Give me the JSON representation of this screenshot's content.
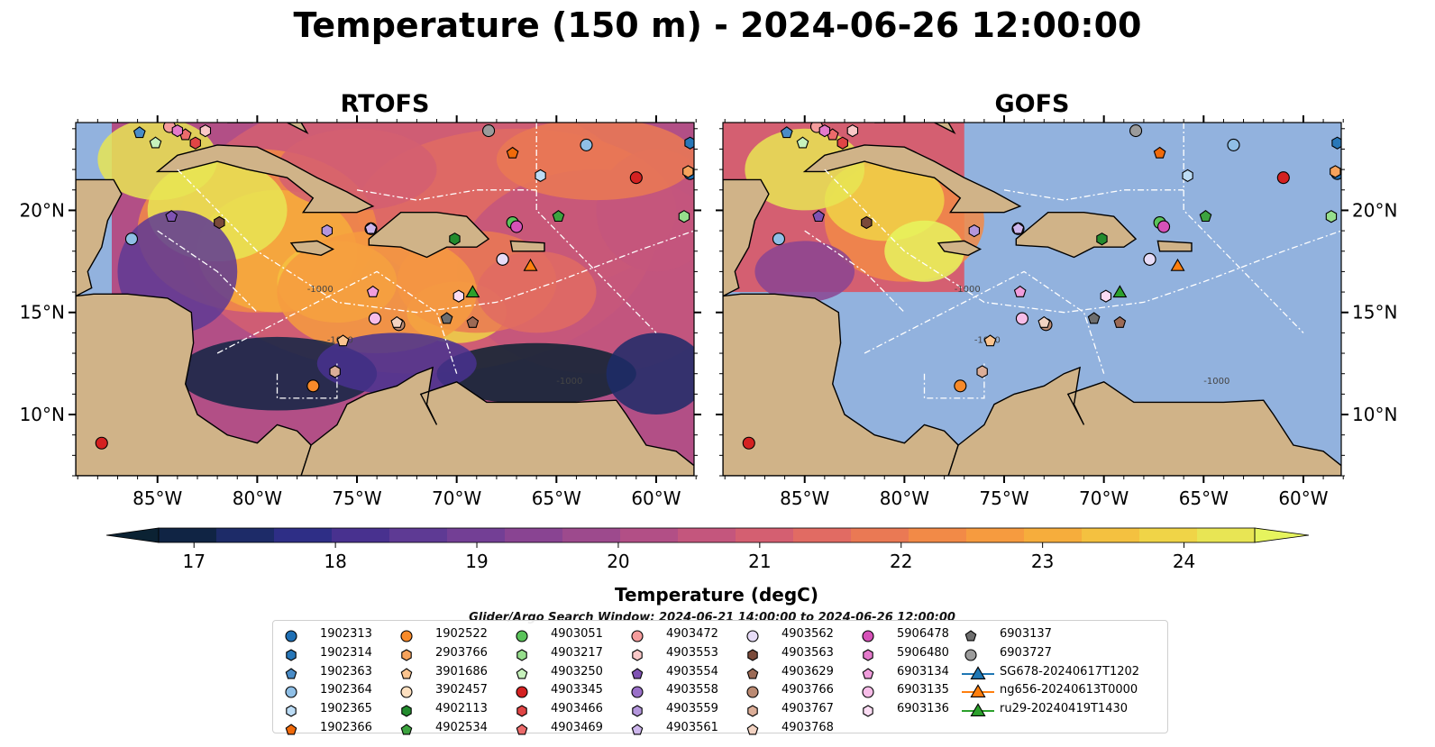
{
  "title": "Temperature (150 m) - 2024-06-26 12:00:00",
  "panels": [
    {
      "title": "RTOFS"
    },
    {
      "title": "GOFS"
    }
  ],
  "axes": {
    "lon_ticks": [
      "85°W",
      "80°W",
      "75°W",
      "70°W",
      "65°W",
      "60°W"
    ],
    "lat_ticks": [
      "20°N",
      "15°N",
      "10°N"
    ]
  },
  "contour_labels": [
    "-1000",
    "-1000",
    "-1000"
  ],
  "colorbar": {
    "label": "Temperature (degC)",
    "ticks": [
      "17",
      "18",
      "19",
      "20",
      "21",
      "22",
      "23",
      "24"
    ],
    "colors": [
      "#0b2233",
      "#102444",
      "#1d2b68",
      "#2e2e86",
      "#48318f",
      "#5e3a94",
      "#733f95",
      "#894492",
      "#9d4a8d",
      "#b24f86",
      "#c4567d",
      "#d45f71",
      "#e16b63",
      "#ea7954",
      "#f28a47",
      "#f69b3f",
      "#f6ad3c",
      "#f4c140",
      "#f0d447",
      "#e8e554",
      "#e6f45e"
    ]
  },
  "search_window": "Glider/Argo Search Window: 2024-06-21 14:00:00 to 2024-06-26 12:00:00",
  "legend": [
    {
      "label": "1902313",
      "marker": "circle",
      "color": "#1f6fb4"
    },
    {
      "label": "1902314",
      "marker": "hexagon",
      "color": "#2877b8"
    },
    {
      "label": "1902363",
      "marker": "pentagon",
      "color": "#4a8cc7"
    },
    {
      "label": "1902364",
      "marker": "circle",
      "color": "#8fbfe6"
    },
    {
      "label": "1902365",
      "marker": "hexagon",
      "color": "#bcdcf5"
    },
    {
      "label": "1902366",
      "marker": "pentagon",
      "color": "#f06a0a"
    },
    {
      "label": "1902522",
      "marker": "circle",
      "color": "#f78a2a"
    },
    {
      "label": "2903766",
      "marker": "hexagon",
      "color": "#f7a35c"
    },
    {
      "label": "3901686",
      "marker": "pentagon",
      "color": "#fbc48f"
    },
    {
      "label": "3902457",
      "marker": "circle",
      "color": "#fde0c0"
    },
    {
      "label": "4902113",
      "marker": "hexagon",
      "color": "#238b2e"
    },
    {
      "label": "4902534",
      "marker": "pentagon",
      "color": "#3ca33f"
    },
    {
      "label": "4903051",
      "marker": "circle",
      "color": "#5ac35a"
    },
    {
      "label": "4903217",
      "marker": "hexagon",
      "color": "#96de8c"
    },
    {
      "label": "4903250",
      "marker": "pentagon",
      "color": "#c7f2bc"
    },
    {
      "label": "4903345",
      "marker": "circle",
      "color": "#d42121"
    },
    {
      "label": "4903466",
      "marker": "hexagon",
      "color": "#e04545"
    },
    {
      "label": "4903469",
      "marker": "pentagon",
      "color": "#ec6b6b"
    },
    {
      "label": "4903472",
      "marker": "circle",
      "color": "#f59c9c"
    },
    {
      "label": "4903553",
      "marker": "hexagon",
      "color": "#fac8c8"
    },
    {
      "label": "4903554",
      "marker": "pentagon",
      "color": "#7f52b3"
    },
    {
      "label": "4903558",
      "marker": "circle",
      "color": "#9a70c8"
    },
    {
      "label": "4903559",
      "marker": "hexagon",
      "color": "#b496dc"
    },
    {
      "label": "4903561",
      "marker": "pentagon",
      "color": "#cdb6ec"
    },
    {
      "label": "4903562",
      "marker": "circle",
      "color": "#e7dcf7"
    },
    {
      "label": "4903563",
      "marker": "hexagon",
      "color": "#7a4a3a"
    },
    {
      "label": "4903629",
      "marker": "pentagon",
      "color": "#9c6a55"
    },
    {
      "label": "4903766",
      "marker": "circle",
      "color": "#bb8a72"
    },
    {
      "label": "4903767",
      "marker": "hexagon",
      "color": "#dcae98"
    },
    {
      "label": "4903768",
      "marker": "pentagon",
      "color": "#f3d3c2"
    },
    {
      "label": "5906478",
      "marker": "circle",
      "color": "#d651b8"
    },
    {
      "label": "5906480",
      "marker": "hexagon",
      "color": "#e47acb"
    },
    {
      "label": "6903134",
      "marker": "pentagon",
      "color": "#f09ddc"
    },
    {
      "label": "6903135",
      "marker": "circle",
      "color": "#f7bde8"
    },
    {
      "label": "6903136",
      "marker": "hexagon",
      "color": "#fbdcf3"
    },
    {
      "label": "6903137",
      "marker": "pentagon",
      "color": "#6e6e6e"
    },
    {
      "label": "6903727",
      "marker": "circle",
      "color": "#9b9b9b"
    },
    {
      "label": "SG678-20240617T1202",
      "marker": "triangle-line",
      "color": "#1f77b4"
    },
    {
      "label": "ng656-20240613T0000",
      "marker": "triangle-line",
      "color": "#ff7f0e"
    },
    {
      "label": "ru29-20240419T1430",
      "marker": "triangle-line",
      "color": "#2ca02c"
    }
  ],
  "map_markers": [
    {
      "id": "1902313",
      "lon": -58.3,
      "lat": 21.8
    },
    {
      "id": "1902314",
      "lon": -58.3,
      "lat": 23.3
    },
    {
      "id": "1902363",
      "lon": -85.9,
      "lat": 23.8
    },
    {
      "id": "1902364",
      "lon": -63.5,
      "lat": 23.2
    },
    {
      "id": "1902365",
      "lon": -65.8,
      "lat": 21.7
    },
    {
      "id": "1902366",
      "lon": -67.2,
      "lat": 22.8
    },
    {
      "id": "1902522",
      "lon": -77.2,
      "lat": 11.4
    },
    {
      "id": "2903766",
      "lon": -58.4,
      "lat": 21.9
    },
    {
      "id": "3901686",
      "lon": -75.7,
      "lat": 13.6
    },
    {
      "id": "3902457",
      "lon": -67.7,
      "lat": 17.6
    },
    {
      "id": "4902113",
      "lon": -70.1,
      "lat": 18.6
    },
    {
      "id": "4902534",
      "lon": -64.9,
      "lat": 19.7
    },
    {
      "id": "4903051",
      "lon": -67.2,
      "lat": 19.4
    },
    {
      "id": "4903217",
      "lon": -58.6,
      "lat": 19.7
    },
    {
      "id": "4903250",
      "lon": -85.1,
      "lat": 23.3
    },
    {
      "id": "4903345",
      "lon": -61.0,
      "lat": 21.6
    },
    {
      "id": "4903466",
      "lon": -83.1,
      "lat": 23.3
    },
    {
      "id": "4903469",
      "lon": -83.6,
      "lat": 23.7
    },
    {
      "id": "4903472",
      "lon": -84.4,
      "lat": 24.1
    },
    {
      "id": "4903553",
      "lon": -82.6,
      "lat": 23.9
    },
    {
      "id": "4903554",
      "lon": -84.3,
      "lat": 19.7
    },
    {
      "id": "4903558",
      "lon": -74.3,
      "lat": 19.1
    },
    {
      "id": "4903559",
      "lon": -76.5,
      "lat": 19.0
    },
    {
      "id": "4903561",
      "lon": -74.3,
      "lat": 19.1
    },
    {
      "id": "4903562",
      "lon": -67.7,
      "lat": 17.6
    },
    {
      "id": "4903563",
      "lon": -81.9,
      "lat": 19.4
    },
    {
      "id": "4903629",
      "lon": -69.2,
      "lat": 14.5
    },
    {
      "id": "4903766",
      "lon": -72.9,
      "lat": 14.4
    },
    {
      "id": "4903767",
      "lon": -76.1,
      "lat": 12.1
    },
    {
      "id": "4903768",
      "lon": -73.0,
      "lat": 14.5
    },
    {
      "id": "5906478",
      "lon": -67.0,
      "lat": 19.2
    },
    {
      "id": "5906480",
      "lon": -84.0,
      "lat": 23.9
    },
    {
      "id": "6903134",
      "lon": -74.2,
      "lat": 16.0
    },
    {
      "id": "6903135",
      "lon": -74.1,
      "lat": 14.7
    },
    {
      "id": "6903136",
      "lon": -69.9,
      "lat": 15.8
    },
    {
      "id": "6903137",
      "lon": -70.5,
      "lat": 14.7
    },
    {
      "id": "6903727",
      "lon": -68.4,
      "lat": 23.9
    },
    {
      "id": "ng656-20240613T0000",
      "lon": -66.3,
      "lat": 17.3
    },
    {
      "id": "ru29-20240419T1430",
      "lon": -69.2,
      "lat": 16.0
    },
    {
      "id": "4903345b",
      "lon": -87.8,
      "lat": 8.6
    },
    {
      "id": "1902364b",
      "lon": -86.3,
      "lat": 18.6
    }
  ]
}
